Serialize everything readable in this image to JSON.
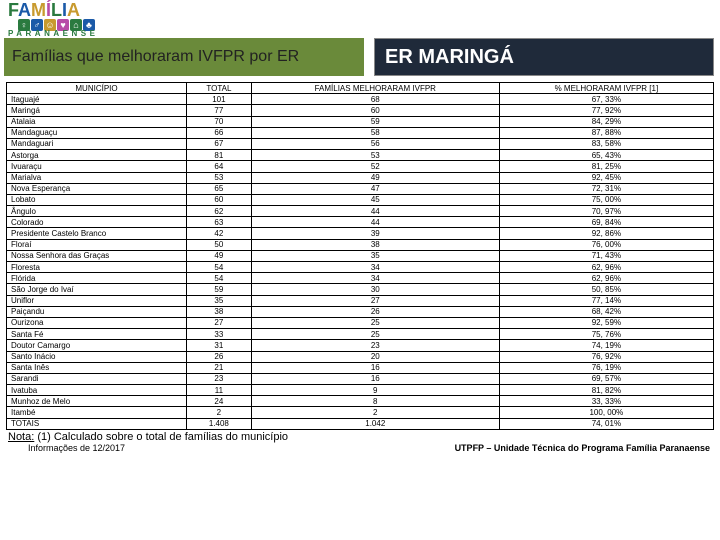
{
  "logo": {
    "main": "FAMÍLIA",
    "sub": "PARANAENSE"
  },
  "title": "Famílias que melhoraram IVFPR por ER",
  "region": "ER MARINGÁ",
  "columns": {
    "municipio": "MUNICÍPIO",
    "total": "TOTAL",
    "melhoraram": "FAMÍLIAS MELHORARAM IVFPR",
    "pct": "% MELHORARAM IVFPR [1]"
  },
  "rows": [
    {
      "m": "Itaguajé",
      "t": "101",
      "f": "68",
      "p": "67, 33%"
    },
    {
      "m": "Maringá",
      "t": "77",
      "f": "60",
      "p": "77, 92%"
    },
    {
      "m": "Atalaia",
      "t": "70",
      "f": "59",
      "p": "84, 29%"
    },
    {
      "m": "Mandaguaçu",
      "t": "66",
      "f": "58",
      "p": "87, 88%"
    },
    {
      "m": "Mandaguari",
      "t": "67",
      "f": "56",
      "p": "83, 58%"
    },
    {
      "m": "Astorga",
      "t": "81",
      "f": "53",
      "p": "65, 43%"
    },
    {
      "m": "Ivuaraçu",
      "t": "64",
      "f": "52",
      "p": "81, 25%"
    },
    {
      "m": "Marialva",
      "t": "53",
      "f": "49",
      "p": "92, 45%"
    },
    {
      "m": "Nova Esperança",
      "t": "65",
      "f": "47",
      "p": "72, 31%"
    },
    {
      "m": "Lobato",
      "t": "60",
      "f": "45",
      "p": "75, 00%"
    },
    {
      "m": "Ângulo",
      "t": "62",
      "f": "44",
      "p": "70, 97%"
    },
    {
      "m": "Colorado",
      "t": "63",
      "f": "44",
      "p": "69, 84%"
    },
    {
      "m": "Presidente Castelo Branco",
      "t": "42",
      "f": "39",
      "p": "92, 86%"
    },
    {
      "m": "Floraí",
      "t": "50",
      "f": "38",
      "p": "76, 00%"
    },
    {
      "m": "Nossa Senhora das Graças",
      "t": "49",
      "f": "35",
      "p": "71, 43%"
    },
    {
      "m": "Floresta",
      "t": "54",
      "f": "34",
      "p": "62, 96%"
    },
    {
      "m": "Flórida",
      "t": "54",
      "f": "34",
      "p": "62, 96%"
    },
    {
      "m": "São Jorge do Ivaí",
      "t": "59",
      "f": "30",
      "p": "50, 85%"
    },
    {
      "m": "Uniflor",
      "t": "35",
      "f": "27",
      "p": "77, 14%"
    },
    {
      "m": "Paiçandu",
      "t": "38",
      "f": "26",
      "p": "68, 42%"
    },
    {
      "m": "Ourizona",
      "t": "27",
      "f": "25",
      "p": "92, 59%"
    },
    {
      "m": "Santa Fé",
      "t": "33",
      "f": "25",
      "p": "75, 76%"
    },
    {
      "m": "Doutor Camargo",
      "t": "31",
      "f": "23",
      "p": "74, 19%"
    },
    {
      "m": "Santo Inácio",
      "t": "26",
      "f": "20",
      "p": "76, 92%"
    },
    {
      "m": "Santa Inês",
      "t": "21",
      "f": "16",
      "p": "76, 19%"
    },
    {
      "m": "Sarandi",
      "t": "23",
      "f": "16",
      "p": "69, 57%"
    },
    {
      "m": "Ivatuba",
      "t": "11",
      "f": "9",
      "p": "81, 82%"
    },
    {
      "m": "Munhoz de Melo",
      "t": "24",
      "f": "8",
      "p": "33, 33%"
    },
    {
      "m": "Itambé",
      "t": "2",
      "f": "2",
      "p": "100, 00%"
    },
    {
      "m": "TOTAIS",
      "t": "1.408",
      "f": "1.042",
      "p": "74, 01%"
    }
  ],
  "note_label": "Nota:",
  "note_text": "(1) Calculado sobre o total de famílias do município",
  "footer_left": "Informações de 12/2017",
  "footer_right": "UTPFP – Unidade Técnica do Programa Família Paranaense",
  "colors": {
    "title_bg": "#6a8a3a",
    "region_bg": "#1f2a3a",
    "border": "#000000"
  }
}
